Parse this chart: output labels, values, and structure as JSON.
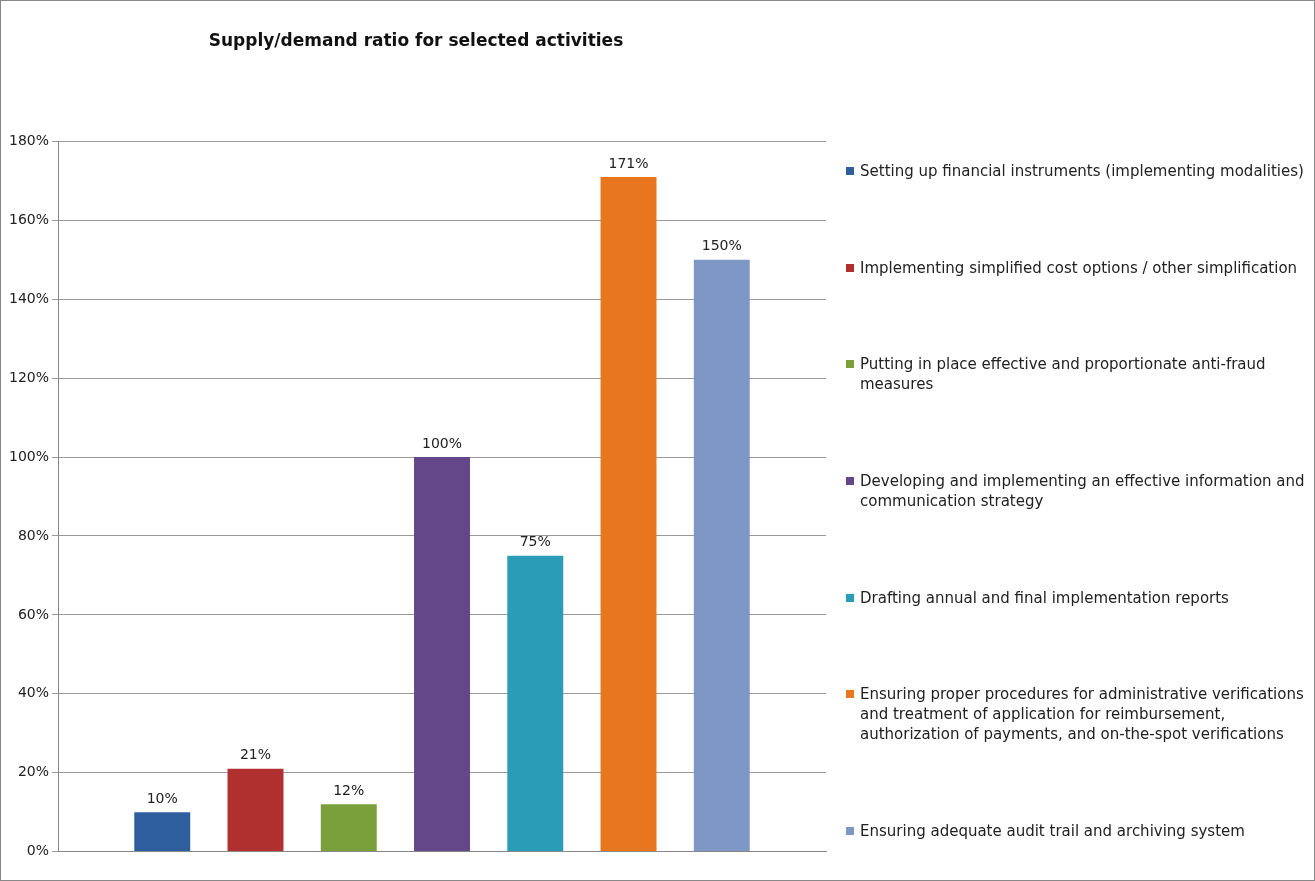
{
  "chart_data": {
    "type": "bar",
    "title": "Supply/demand ratio for selected activities",
    "categories": [
      null
    ],
    "series": [
      {
        "name": "Setting up financial instruments (implementing modalities)",
        "color": "#2e5e9e",
        "values": [
          10
        ],
        "value_labels": [
          "10%"
        ]
      },
      {
        "name": "Implementing simplified cost options / other simplification",
        "color": "#b03030",
        "values": [
          21
        ],
        "value_labels": [
          "21%"
        ]
      },
      {
        "name": "Putting in place effective and proportionate anti-fraud measures",
        "color": "#79a03a",
        "values": [
          12
        ],
        "value_labels": [
          "12%"
        ]
      },
      {
        "name": "Developing and implementing an effective information and communication strategy",
        "color": "#634788",
        "values": [
          100
        ],
        "value_labels": [
          "100%"
        ]
      },
      {
        "name": "Drafting annual and final implementation reports",
        "color": "#2a9cb5",
        "values": [
          75
        ],
        "value_labels": [
          "75%"
        ]
      },
      {
        "name": "Ensuring proper procedures for administrative verifications and treatment of application for reimbursement, authorization of payments, and on-the-spot verifications",
        "color": "#e8761f",
        "values": [
          171
        ],
        "value_labels": [
          "171%"
        ]
      },
      {
        "name": "Ensuring adequate audit trail and archiving system",
        "color": "#7f97c4",
        "values": [
          150
        ],
        "value_labels": [
          "150%"
        ]
      }
    ],
    "ylim": [
      0,
      180
    ],
    "yticks": [
      {
        "value": 0,
        "label": "0%"
      },
      {
        "value": 20,
        "label": "20%"
      },
      {
        "value": 40,
        "label": "40%"
      },
      {
        "value": 60,
        "label": "60%"
      },
      {
        "value": 80,
        "label": "80%"
      },
      {
        "value": 100,
        "label": "100%"
      },
      {
        "value": 120,
        "label": "120%"
      },
      {
        "value": 140,
        "label": "140%"
      },
      {
        "value": 160,
        "label": "160%"
      },
      {
        "value": 180,
        "label": "180%"
      }
    ],
    "grid": "y",
    "legend": "right"
  }
}
